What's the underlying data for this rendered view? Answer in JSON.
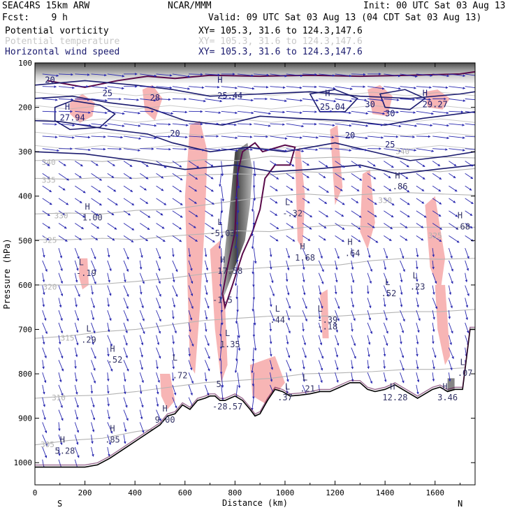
{
  "header": {
    "model": "SEAC4RS 15km ARW",
    "org": "NCAR/MMM",
    "init": "Init: 00 UTC Sat 03 Aug 13",
    "fcst": "Fcst:    9 h",
    "valid": "Valid: 09 UTC Sat 03 Aug 13 (04 CDT Sat 03 Aug 13)"
  },
  "legend": [
    {
      "name": "Potential vorticity",
      "xy": "XY= 105.3, 31.6 to 124.3,147.6",
      "color": "#000000"
    },
    {
      "name": "Potential temperature",
      "xy": "XY= 105.3, 31.6 to 124.3,147.6",
      "color": "#c0c0c0"
    },
    {
      "name": "Horizontal wind speed",
      "xy": "XY= 105.3, 31.6 to 124.3,147.6",
      "color": "#1a1a6e"
    }
  ],
  "colors": {
    "pv_fill": "#f7b5b5",
    "pv_strong": "#555555",
    "pv_contour": "#5a0a4a",
    "theta": "#b4b4b4",
    "wind_contour": "#1a1a6e",
    "vector": "#2a2ab0",
    "terrain": "#000000"
  },
  "chart_data": {
    "type": "heatmap",
    "xlabel": "Distance (km)",
    "ylabel": "Pressure (hPa)",
    "xlim": [
      0,
      1760
    ],
    "ylim": [
      1050,
      100
    ],
    "x_ticks": [
      0,
      200,
      400,
      600,
      800,
      1000,
      1200,
      1400,
      1600
    ],
    "y_ticks": [
      100,
      200,
      300,
      400,
      500,
      600,
      700,
      800,
      900,
      1000
    ],
    "direction_left": "S",
    "direction_right": "N",
    "terrain": {
      "x": [
        0,
        30,
        60,
        100,
        150,
        200,
        250,
        300,
        340,
        380,
        420,
        460,
        500,
        530,
        560,
        590,
        620,
        650,
        680,
        700,
        720,
        740,
        760,
        780,
        800,
        830,
        860,
        880,
        900,
        930,
        960,
        990,
        1020,
        1060,
        1100,
        1140,
        1180,
        1220,
        1260,
        1300,
        1330,
        1360,
        1400,
        1440,
        1470,
        1500,
        1530,
        1560,
        1590,
        1620,
        1650,
        1680,
        1710,
        1740,
        1760
      ],
      "p": [
        1010,
        1010,
        1010,
        1010,
        1010,
        1010,
        1005,
        990,
        975,
        960,
        945,
        930,
        915,
        895,
        890,
        870,
        880,
        860,
        855,
        850,
        850,
        860,
        860,
        855,
        850,
        860,
        880,
        895,
        890,
        860,
        835,
        840,
        850,
        848,
        845,
        840,
        840,
        830,
        820,
        820,
        835,
        840,
        835,
        825,
        835,
        845,
        855,
        845,
        835,
        830,
        840,
        835,
        835,
        700,
        700
      ]
    },
    "theta_levels": [
      {
        "label": "340",
        "p": [
          320,
          318,
          322,
          315,
          325,
          318,
          320,
          310,
          315,
          312,
          315,
          310,
          312,
          314
        ]
      },
      {
        "label": "335",
        "p": [
          360,
          362,
          358,
          360,
          355,
          352,
          350,
          352,
          345,
          348,
          342,
          340,
          345,
          338
        ]
      },
      {
        "label": "330",
        "p": [
          440,
          438,
          440,
          432,
          430,
          420,
          410,
          400,
          395,
          400,
          395,
          392,
          395,
          398
        ]
      },
      {
        "label": "325",
        "p": [
          498,
          498,
          495,
          498,
          490,
          485,
          478,
          480,
          470,
          465,
          470,
          470,
          470,
          470
        ]
      },
      {
        "label": "320",
        "p": [
          600,
          600,
          598,
          592,
          585,
          575,
          565,
          560,
          555,
          555,
          545,
          540,
          542,
          540
        ]
      },
      {
        "label": "315",
        "p": [
          720,
          715,
          705,
          700,
          690,
          680,
          675,
          670,
          670,
          670,
          665,
          660,
          660,
          655
        ]
      },
      {
        "label": "310",
        "p": [
          855,
          850,
          848,
          840,
          830,
          820,
          815,
          810,
          800,
          798,
          795,
          790,
          790,
          785
        ]
      },
      {
        "label": "305",
        "p": [
          960,
          950,
          945,
          930,
          920,
          905,
          895,
          890,
          885,
          880,
          878,
          875,
          870,
          868
        ]
      }
    ],
    "theta_x": [
      0,
      135,
      270,
      405,
      540,
      675,
      810,
      945,
      1080,
      1215,
      1350,
      1485,
      1620,
      1760
    ],
    "labels": [
      {
        "text": "20",
        "x": 60,
        "p": 145,
        "kind": "wind"
      },
      {
        "text": "25",
        "x": 290,
        "p": 175,
        "kind": "wind"
      },
      {
        "text": "28",
        "x": 480,
        "p": 185,
        "kind": "wind"
      },
      {
        "text": "H",
        "x": 130,
        "p": 205,
        "kind": "wind"
      },
      {
        "text": "27.94",
        "x": 150,
        "p": 230,
        "kind": "wind"
      },
      {
        "text": "20",
        "x": 560,
        "p": 265,
        "kind": "wind"
      },
      {
        "text": "H",
        "x": 740,
        "p": 145,
        "kind": "wind"
      },
      {
        "text": "25.44",
        "x": 780,
        "p": 180,
        "kind": "wind"
      },
      {
        "text": "H",
        "x": 1170,
        "p": 175,
        "kind": "wind"
      },
      {
        "text": "25.04",
        "x": 1190,
        "p": 205,
        "kind": "wind"
      },
      {
        "text": "30",
        "x": 1340,
        "p": 200,
        "kind": "wind"
      },
      {
        "text": "30",
        "x": 1420,
        "p": 220,
        "kind": "wind"
      },
      {
        "text": "H",
        "x": 1560,
        "p": 175,
        "kind": "wind"
      },
      {
        "text": "29.27",
        "x": 1600,
        "p": 200,
        "kind": "wind"
      },
      {
        "text": "20",
        "x": 1260,
        "p": 270,
        "kind": "wind"
      },
      {
        "text": "25",
        "x": 1420,
        "p": 290,
        "kind": "wind"
      },
      {
        "text": "H",
        "x": 1450,
        "p": 360,
        "kind": "pv"
      },
      {
        "text": ".86",
        "x": 1460,
        "p": 385,
        "kind": "pv"
      },
      {
        "text": "H",
        "x": 210,
        "p": 430,
        "kind": "pv"
      },
      {
        "text": "1.00",
        "x": 230,
        "p": 455,
        "kind": "pv"
      },
      {
        "text": "L",
        "x": 740,
        "p": 465,
        "kind": "pv"
      },
      {
        "text": "-5.03",
        "x": 750,
        "p": 490,
        "kind": "pv"
      },
      {
        "text": "L",
        "x": 1010,
        "p": 420,
        "kind": "pv"
      },
      {
        "text": "-.32",
        "x": 1030,
        "p": 445,
        "kind": "pv"
      },
      {
        "text": "H",
        "x": 1700,
        "p": 450,
        "kind": "pv"
      },
      {
        "text": ".68",
        "x": 1710,
        "p": 475,
        "kind": "pv"
      },
      {
        "text": "H",
        "x": 1070,
        "p": 520,
        "kind": "pv"
      },
      {
        "text": "1.68",
        "x": 1080,
        "p": 545,
        "kind": "pv"
      },
      {
        "text": "H",
        "x": 1260,
        "p": 510,
        "kind": "pv"
      },
      {
        "text": ".64",
        "x": 1270,
        "p": 535,
        "kind": "pv"
      },
      {
        "text": "L",
        "x": 185,
        "p": 555,
        "kind": "pv"
      },
      {
        "text": "-.19",
        "x": 205,
        "p": 580,
        "kind": "pv"
      },
      {
        "text": "H",
        "x": 750,
        "p": 550,
        "kind": "pv"
      },
      {
        "text": "17.58",
        "x": 780,
        "p": 575,
        "kind": "pv"
      },
      {
        "text": "-1.5",
        "x": 750,
        "p": 640,
        "kind": "pv"
      },
      {
        "text": "L",
        "x": 1410,
        "p": 600,
        "kind": "pv"
      },
      {
        "text": ".52",
        "x": 1415,
        "p": 625,
        "kind": "pv"
      },
      {
        "text": "L",
        "x": 1520,
        "p": 585,
        "kind": "pv"
      },
      {
        "text": ".23",
        "x": 1530,
        "p": 610,
        "kind": "pv"
      },
      {
        "text": "L",
        "x": 970,
        "p": 660,
        "kind": "pv"
      },
      {
        "text": ".44",
        "x": 970,
        "p": 685,
        "kind": "pv"
      },
      {
        "text": "L",
        "x": 1140,
        "p": 660,
        "kind": "pv"
      },
      {
        "text": "-.39",
        "x": 1170,
        "p": 685,
        "kind": "pv"
      },
      {
        "text": "-.18",
        "x": 1170,
        "p": 700,
        "kind": "pv"
      },
      {
        "text": "L",
        "x": 215,
        "p": 705,
        "kind": "pv"
      },
      {
        "text": ".29",
        "x": 215,
        "p": 730,
        "kind": "pv"
      },
      {
        "text": "L",
        "x": 770,
        "p": 715,
        "kind": "pv"
      },
      {
        "text": "1.35",
        "x": 780,
        "p": 740,
        "kind": "pv"
      },
      {
        "text": "H",
        "x": 310,
        "p": 750,
        "kind": "pv"
      },
      {
        "text": ".52",
        "x": 320,
        "p": 775,
        "kind": "pv"
      },
      {
        "text": "L",
        "x": 560,
        "p": 770,
        "kind": "pv"
      },
      {
        "text": ".72",
        "x": 580,
        "p": 810,
        "kind": "pv"
      },
      {
        "text": "L",
        "x": 1710,
        "p": 780,
        "kind": "pv"
      },
      {
        "text": ".07",
        "x": 1720,
        "p": 805,
        "kind": "pv"
      },
      {
        "text": "L",
        "x": 1080,
        "p": 815,
        "kind": "pv"
      },
      {
        "text": ".21",
        "x": 1090,
        "p": 840,
        "kind": "pv"
      },
      {
        "text": "L",
        "x": 1010,
        "p": 835,
        "kind": "pv"
      },
      {
        "text": ".37",
        "x": 1000,
        "p": 860,
        "kind": "pv"
      },
      {
        "text": "H",
        "x": 1430,
        "p": 835,
        "kind": "pv"
      },
      {
        "text": "12.28",
        "x": 1440,
        "p": 860,
        "kind": "pv"
      },
      {
        "text": "H",
        "x": 1640,
        "p": 835,
        "kind": "pv"
      },
      {
        "text": "3.46",
        "x": 1650,
        "p": 860,
        "kind": "pv"
      },
      {
        "text": "5",
        "x": 735,
        "p": 830,
        "kind": "pv"
      },
      {
        "text": "-28.57",
        "x": 770,
        "p": 880,
        "kind": "pv"
      },
      {
        "text": "H",
        "x": 520,
        "p": 885,
        "kind": "pv"
      },
      {
        "text": "9.00",
        "x": 520,
        "p": 910,
        "kind": "pv"
      },
      {
        "text": "H",
        "x": 310,
        "p": 930,
        "kind": "pv"
      },
      {
        "text": ".85",
        "x": 310,
        "p": 955,
        "kind": "pv"
      },
      {
        "text": "H",
        "x": 110,
        "p": 955,
        "kind": "pv"
      },
      {
        "text": "5.28",
        "x": 120,
        "p": 980,
        "kind": "pv"
      },
      {
        "text": "340",
        "x": 55,
        "p": 330,
        "kind": "theta"
      },
      {
        "text": "335",
        "x": 55,
        "p": 370,
        "kind": "theta"
      },
      {
        "text": "330",
        "x": 105,
        "p": 450,
        "kind": "theta"
      },
      {
        "text": "325",
        "x": 60,
        "p": 505,
        "kind": "theta"
      },
      {
        "text": "320",
        "x": 60,
        "p": 610,
        "kind": "theta"
      },
      {
        "text": "315",
        "x": 130,
        "p": 725,
        "kind": "theta"
      },
      {
        "text": "310",
        "x": 95,
        "p": 860,
        "kind": "theta"
      },
      {
        "text": "305",
        "x": 50,
        "p": 965,
        "kind": "theta"
      },
      {
        "text": "340",
        "x": 1470,
        "p": 305,
        "kind": "theta"
      },
      {
        "text": "330",
        "x": 1400,
        "p": 415,
        "kind": "theta"
      },
      {
        "text": "325",
        "x": 1600,
        "p": 495,
        "kind": "theta"
      }
    ]
  }
}
